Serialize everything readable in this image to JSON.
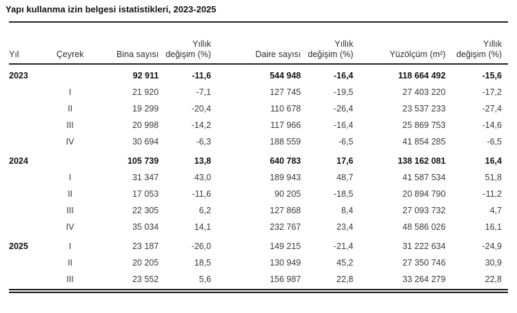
{
  "title": "Yapı kullanma izin belgesi istatistikleri, 2023-2025",
  "table": {
    "columns": [
      {
        "top": "",
        "label": "Yıl",
        "align": "left"
      },
      {
        "top": "",
        "label": "Çeyrek",
        "align": "center"
      },
      {
        "top": "",
        "label": "Bina sayısı",
        "align": "right"
      },
      {
        "top": "Yıllık",
        "label": "değişim (%)",
        "align": "right"
      },
      {
        "top": "",
        "label": "Daire sayısı",
        "align": "right"
      },
      {
        "top": "Yıllık",
        "label": "değişim (%)",
        "align": "right"
      },
      {
        "top": "",
        "label": "Yüzölçüm (m²)",
        "align": "right"
      },
      {
        "top": "Yıllık",
        "label": "değişim (%)",
        "align": "right"
      }
    ],
    "rows": [
      {
        "year": "2023",
        "quarter": "",
        "bold": true,
        "values": [
          "92 911",
          "-11,6",
          "544 948",
          "-16,4",
          "118 664 492",
          "-15,6"
        ]
      },
      {
        "year": "",
        "quarter": "I",
        "bold": false,
        "values": [
          "21 920",
          "-7,1",
          "127 745",
          "-19,5",
          "27 403 220",
          "-17,2"
        ]
      },
      {
        "year": "",
        "quarter": "II",
        "bold": false,
        "values": [
          "19 299",
          "-20,4",
          "110 678",
          "-26,4",
          "23 537 233",
          "-27,4"
        ]
      },
      {
        "year": "",
        "quarter": "III",
        "bold": false,
        "values": [
          "20 998",
          "-14,2",
          "117 966",
          "-16,4",
          "25 869 753",
          "-14,6"
        ]
      },
      {
        "year": "",
        "quarter": "IV",
        "bold": false,
        "values": [
          "30 694",
          "-6,3",
          "188 559",
          "-6,5",
          "41 854 285",
          "-6,5"
        ]
      },
      {
        "year": "2024",
        "quarter": "",
        "bold": true,
        "values": [
          "105 739",
          "13,8",
          "640 783",
          "17,6",
          "138 162 081",
          "16,4"
        ]
      },
      {
        "year": "",
        "quarter": "I",
        "bold": false,
        "values": [
          "31 347",
          "43,0",
          "189 943",
          "48,7",
          "41 587 534",
          "51,8"
        ]
      },
      {
        "year": "",
        "quarter": "II",
        "bold": false,
        "values": [
          "17 053",
          "-11,6",
          "90 205",
          "-18,5",
          "20 894 790",
          "-11,2"
        ]
      },
      {
        "year": "",
        "quarter": "III",
        "bold": false,
        "values": [
          "22 305",
          "6,2",
          "127 868",
          "8,4",
          "27 093 732",
          "4,7"
        ]
      },
      {
        "year": "",
        "quarter": "IV",
        "bold": false,
        "values": [
          "35 034",
          "14,1",
          "232 767",
          "23,4",
          "48 586 026",
          "16,1"
        ]
      },
      {
        "year": "2025",
        "quarter": "I",
        "bold": false,
        "values": [
          "23 187",
          "-26,0",
          "149 215",
          "-21,4",
          "31 222 634",
          "-24,9"
        ]
      },
      {
        "year": "",
        "quarter": "II",
        "bold": false,
        "values": [
          "20 205",
          "18,5",
          "130 949",
          "45,2",
          "27 350 746",
          "30,9"
        ]
      },
      {
        "year": "",
        "quarter": "III",
        "bold": false,
        "values": [
          "23 552",
          "5,6",
          "156 987",
          "22,8",
          "33 264 279",
          "22,8"
        ]
      }
    ]
  },
  "colors": {
    "text": "#3a3a3a",
    "emphasis": "#111111",
    "rule": "#1a1a1a",
    "background": "#ffffff"
  }
}
